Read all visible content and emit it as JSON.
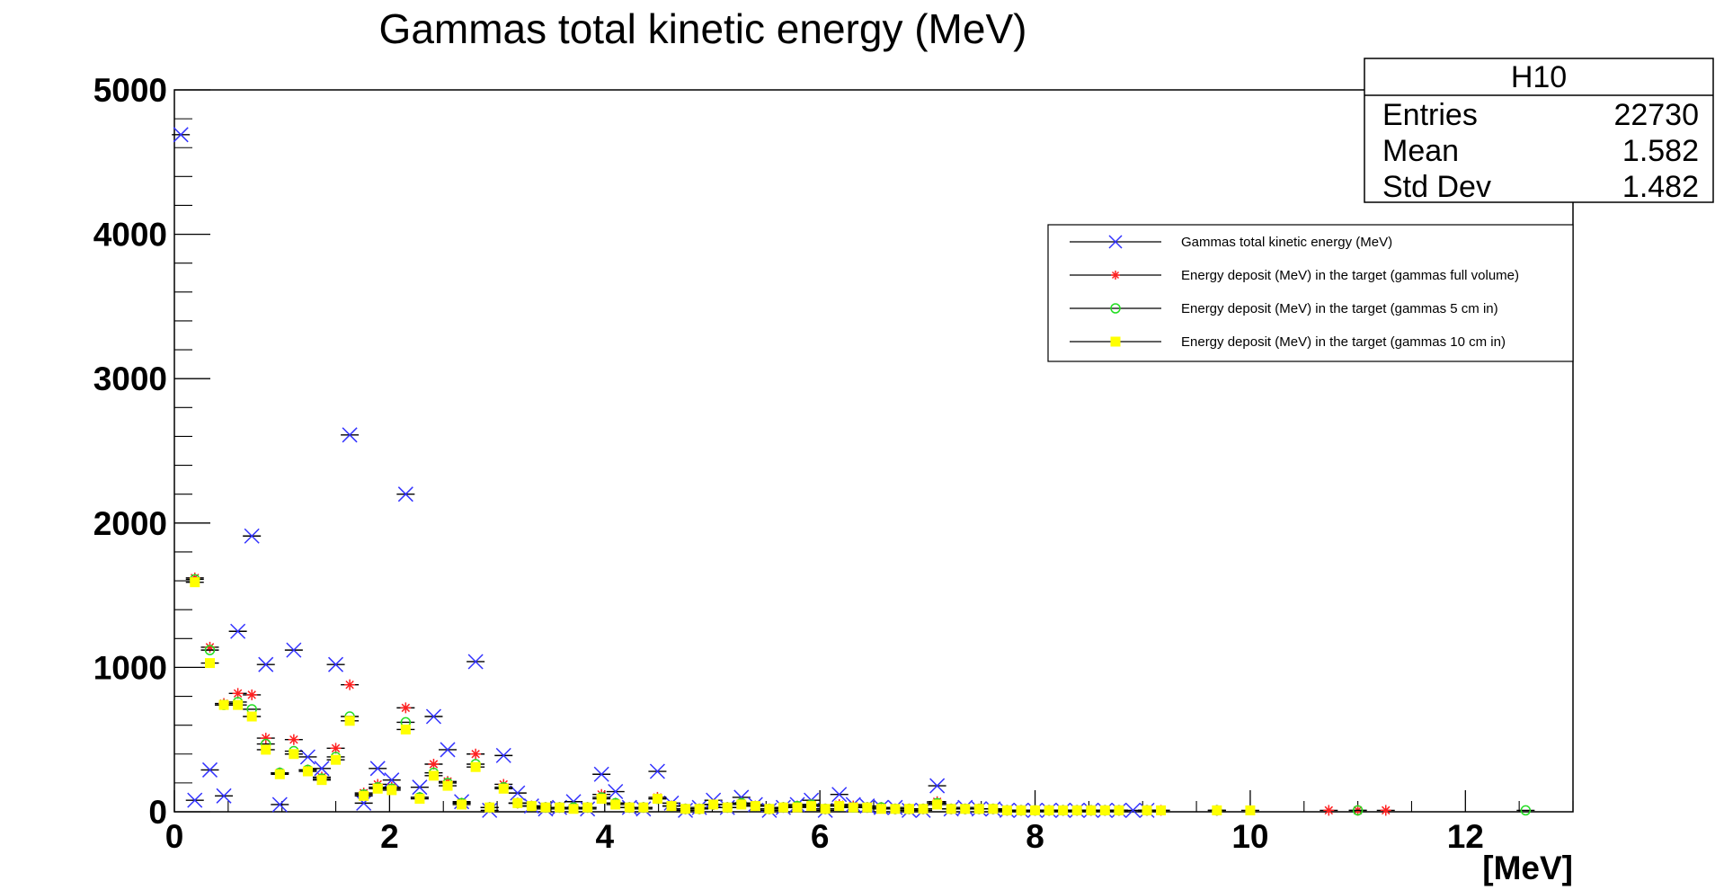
{
  "chart_data": {
    "type": "scatter",
    "title": "Gammas total kinetic energy (MeV)",
    "xlabel": "[MeV]",
    "ylabel": "",
    "xlim": [
      0,
      13
    ],
    "ylim": [
      0,
      5000
    ],
    "x_ticks": [
      "0",
      "2",
      "4",
      "6",
      "8",
      "10",
      "12"
    ],
    "y_ticks": [
      "0",
      "1000",
      "2000",
      "3000",
      "4000",
      "5000"
    ],
    "grid": false,
    "legend_position": "right",
    "stats_box": {
      "name": "H10",
      "rows": [
        {
          "label": "Entries",
          "value": "22730"
        },
        {
          "label": "Mean",
          "value": "1.582"
        },
        {
          "label": "Std Dev",
          "value": "1.482"
        }
      ]
    },
    "series": [
      {
        "name": "Gammas total kinetic energy (MeV)",
        "marker": "cross",
        "color": "#3232ff",
        "points": [
          [
            0.06,
            4690
          ],
          [
            0.19,
            80
          ],
          [
            0.33,
            290
          ],
          [
            0.46,
            110
          ],
          [
            0.59,
            1250
          ],
          [
            0.72,
            1910
          ],
          [
            0.85,
            1020
          ],
          [
            0.98,
            50
          ],
          [
            1.11,
            1120
          ],
          [
            1.24,
            380
          ],
          [
            1.37,
            300
          ],
          [
            1.5,
            1020
          ],
          [
            1.63,
            2610
          ],
          [
            1.76,
            60
          ],
          [
            1.89,
            300
          ],
          [
            2.02,
            220
          ],
          [
            2.15,
            2200
          ],
          [
            2.28,
            170
          ],
          [
            2.41,
            660
          ],
          [
            2.54,
            430
          ],
          [
            2.67,
            70
          ],
          [
            2.8,
            1040
          ],
          [
            2.93,
            10
          ],
          [
            3.06,
            390
          ],
          [
            3.19,
            130
          ],
          [
            3.32,
            40
          ],
          [
            3.45,
            20
          ],
          [
            3.58,
            30
          ],
          [
            3.71,
            70
          ],
          [
            3.84,
            20
          ],
          [
            3.97,
            260
          ],
          [
            4.1,
            140
          ],
          [
            4.23,
            30
          ],
          [
            4.36,
            20
          ],
          [
            4.49,
            280
          ],
          [
            4.62,
            60
          ],
          [
            4.75,
            10
          ],
          [
            4.88,
            30
          ],
          [
            5.01,
            80
          ],
          [
            5.14,
            30
          ],
          [
            5.27,
            100
          ],
          [
            5.4,
            50
          ],
          [
            5.53,
            10
          ],
          [
            5.66,
            30
          ],
          [
            5.79,
            50
          ],
          [
            5.92,
            80
          ],
          [
            6.05,
            10
          ],
          [
            6.18,
            120
          ],
          [
            6.31,
            50
          ],
          [
            6.44,
            40
          ],
          [
            6.57,
            30
          ],
          [
            6.7,
            30
          ],
          [
            6.83,
            10
          ],
          [
            6.96,
            10
          ],
          [
            7.09,
            180
          ],
          [
            7.22,
            20
          ],
          [
            7.35,
            30
          ],
          [
            7.48,
            20
          ],
          [
            7.61,
            20
          ],
          [
            7.74,
            10
          ],
          [
            7.87,
            10
          ],
          [
            8.0,
            10
          ],
          [
            8.13,
            10
          ],
          [
            8.26,
            10
          ],
          [
            8.39,
            10
          ],
          [
            8.52,
            10
          ],
          [
            8.65,
            10
          ],
          [
            8.78,
            10
          ],
          [
            8.91,
            10
          ],
          [
            9.04,
            10
          ]
        ]
      },
      {
        "name": "Energy deposit (MeV) in the target (gammas full volume)",
        "marker": "star",
        "color": "#ff2020",
        "points": [
          [
            0.19,
            1620
          ],
          [
            0.33,
            1140
          ],
          [
            0.46,
            750
          ],
          [
            0.59,
            820
          ],
          [
            0.72,
            810
          ],
          [
            0.85,
            510
          ],
          [
            0.98,
            270
          ],
          [
            1.11,
            500
          ],
          [
            1.24,
            290
          ],
          [
            1.37,
            240
          ],
          [
            1.5,
            440
          ],
          [
            1.63,
            880
          ],
          [
            1.76,
            130
          ],
          [
            1.89,
            190
          ],
          [
            2.02,
            170
          ],
          [
            2.15,
            720
          ],
          [
            2.28,
            100
          ],
          [
            2.41,
            330
          ],
          [
            2.54,
            210
          ],
          [
            2.67,
            60
          ],
          [
            2.8,
            400
          ],
          [
            2.93,
            30
          ],
          [
            3.06,
            190
          ],
          [
            3.19,
            60
          ],
          [
            3.32,
            40
          ],
          [
            3.45,
            30
          ],
          [
            3.58,
            30
          ],
          [
            3.71,
            30
          ],
          [
            3.84,
            30
          ],
          [
            3.97,
            120
          ],
          [
            4.1,
            60
          ],
          [
            4.23,
            30
          ],
          [
            4.36,
            30
          ],
          [
            4.49,
            100
          ],
          [
            4.62,
            40
          ],
          [
            4.75,
            20
          ],
          [
            4.88,
            20
          ],
          [
            5.01,
            50
          ],
          [
            5.14,
            30
          ],
          [
            5.27,
            60
          ],
          [
            5.4,
            40
          ],
          [
            5.53,
            20
          ],
          [
            5.66,
            30
          ],
          [
            5.79,
            40
          ],
          [
            5.92,
            50
          ],
          [
            6.05,
            20
          ],
          [
            6.18,
            50
          ],
          [
            6.31,
            40
          ],
          [
            6.44,
            30
          ],
          [
            6.57,
            30
          ],
          [
            6.7,
            20
          ],
          [
            6.83,
            20
          ],
          [
            6.96,
            20
          ],
          [
            7.09,
            70
          ],
          [
            7.22,
            20
          ],
          [
            7.35,
            20
          ],
          [
            7.48,
            20
          ],
          [
            7.61,
            20
          ],
          [
            7.74,
            10
          ],
          [
            7.87,
            10
          ],
          [
            8.0,
            10
          ],
          [
            8.13,
            10
          ],
          [
            8.26,
            10
          ],
          [
            8.39,
            10
          ],
          [
            8.52,
            10
          ],
          [
            8.65,
            10
          ],
          [
            8.78,
            10
          ],
          [
            9.04,
            10
          ],
          [
            9.17,
            10
          ],
          [
            9.69,
            10
          ],
          [
            10.73,
            10
          ],
          [
            11.0,
            10
          ],
          [
            11.26,
            10
          ]
        ]
      },
      {
        "name": "Energy deposit (MeV) in the target (gammas 5 cm in)",
        "marker": "circle",
        "color": "#22dd22",
        "points": [
          [
            0.19,
            1610
          ],
          [
            0.33,
            1120
          ],
          [
            0.46,
            740
          ],
          [
            0.59,
            760
          ],
          [
            0.72,
            710
          ],
          [
            0.85,
            470
          ],
          [
            0.98,
            270
          ],
          [
            1.11,
            420
          ],
          [
            1.24,
            290
          ],
          [
            1.37,
            230
          ],
          [
            1.5,
            380
          ],
          [
            1.63,
            660
          ],
          [
            1.76,
            120
          ],
          [
            1.89,
            170
          ],
          [
            2.02,
            160
          ],
          [
            2.15,
            620
          ],
          [
            2.28,
            100
          ],
          [
            2.41,
            270
          ],
          [
            2.54,
            200
          ],
          [
            2.67,
            60
          ],
          [
            2.8,
            330
          ],
          [
            2.93,
            30
          ],
          [
            3.06,
            170
          ],
          [
            3.19,
            60
          ],
          [
            3.32,
            40
          ],
          [
            3.45,
            30
          ],
          [
            3.58,
            30
          ],
          [
            3.71,
            30
          ],
          [
            3.84,
            30
          ],
          [
            3.97,
            100
          ],
          [
            4.1,
            60
          ],
          [
            4.23,
            30
          ],
          [
            4.36,
            30
          ],
          [
            4.49,
            90
          ],
          [
            4.62,
            40
          ],
          [
            4.75,
            20
          ],
          [
            4.88,
            20
          ],
          [
            5.01,
            50
          ],
          [
            5.14,
            30
          ],
          [
            5.27,
            60
          ],
          [
            5.4,
            40
          ],
          [
            5.53,
            20
          ],
          [
            5.66,
            30
          ],
          [
            5.79,
            40
          ],
          [
            5.92,
            50
          ],
          [
            6.05,
            20
          ],
          [
            6.18,
            40
          ],
          [
            6.31,
            30
          ],
          [
            6.44,
            30
          ],
          [
            6.57,
            30
          ],
          [
            6.7,
            20
          ],
          [
            6.83,
            20
          ],
          [
            6.96,
            20
          ],
          [
            7.09,
            60
          ],
          [
            7.22,
            20
          ],
          [
            7.35,
            20
          ],
          [
            7.48,
            20
          ],
          [
            7.61,
            20
          ],
          [
            7.74,
            10
          ],
          [
            7.87,
            10
          ],
          [
            8.0,
            10
          ],
          [
            8.13,
            10
          ],
          [
            8.26,
            10
          ],
          [
            8.39,
            10
          ],
          [
            8.52,
            10
          ],
          [
            8.65,
            10
          ],
          [
            8.78,
            10
          ],
          [
            9.04,
            10
          ],
          [
            9.69,
            10
          ],
          [
            11.0,
            10
          ],
          [
            12.56,
            10
          ]
        ]
      },
      {
        "name": "Energy deposit (MeV) in the target (gammas 10 cm in)",
        "marker": "square",
        "color": "#ffff00",
        "points": [
          [
            0.19,
            1590
          ],
          [
            0.33,
            1030
          ],
          [
            0.46,
            740
          ],
          [
            0.59,
            740
          ],
          [
            0.72,
            660
          ],
          [
            0.85,
            430
          ],
          [
            0.98,
            260
          ],
          [
            1.11,
            400
          ],
          [
            1.24,
            280
          ],
          [
            1.37,
            220
          ],
          [
            1.5,
            360
          ],
          [
            1.63,
            630
          ],
          [
            1.76,
            110
          ],
          [
            1.89,
            160
          ],
          [
            2.02,
            150
          ],
          [
            2.15,
            570
          ],
          [
            2.28,
            90
          ],
          [
            2.41,
            250
          ],
          [
            2.54,
            180
          ],
          [
            2.67,
            50
          ],
          [
            2.8,
            310
          ],
          [
            2.93,
            30
          ],
          [
            3.06,
            160
          ],
          [
            3.19,
            60
          ],
          [
            3.32,
            40
          ],
          [
            3.45,
            30
          ],
          [
            3.58,
            30
          ],
          [
            3.71,
            20
          ],
          [
            3.84,
            30
          ],
          [
            3.97,
            90
          ],
          [
            4.1,
            50
          ],
          [
            4.23,
            30
          ],
          [
            4.36,
            30
          ],
          [
            4.49,
            90
          ],
          [
            4.62,
            40
          ],
          [
            4.75,
            20
          ],
          [
            4.88,
            20
          ],
          [
            5.01,
            50
          ],
          [
            5.14,
            30
          ],
          [
            5.27,
            50
          ],
          [
            5.4,
            40
          ],
          [
            5.53,
            20
          ],
          [
            5.66,
            30
          ],
          [
            5.79,
            30
          ],
          [
            5.92,
            40
          ],
          [
            6.05,
            20
          ],
          [
            6.18,
            40
          ],
          [
            6.31,
            30
          ],
          [
            6.44,
            30
          ],
          [
            6.57,
            20
          ],
          [
            6.7,
            20
          ],
          [
            6.83,
            20
          ],
          [
            6.96,
            20
          ],
          [
            7.09,
            50
          ],
          [
            7.22,
            20
          ],
          [
            7.35,
            20
          ],
          [
            7.48,
            20
          ],
          [
            7.61,
            20
          ],
          [
            7.74,
            10
          ],
          [
            7.87,
            10
          ],
          [
            8.0,
            10
          ],
          [
            8.13,
            10
          ],
          [
            8.26,
            10
          ],
          [
            8.39,
            10
          ],
          [
            8.52,
            10
          ],
          [
            8.65,
            10
          ],
          [
            8.78,
            10
          ],
          [
            9.04,
            10
          ],
          [
            9.17,
            10
          ],
          [
            9.69,
            10
          ],
          [
            10.0,
            10
          ]
        ]
      }
    ]
  }
}
